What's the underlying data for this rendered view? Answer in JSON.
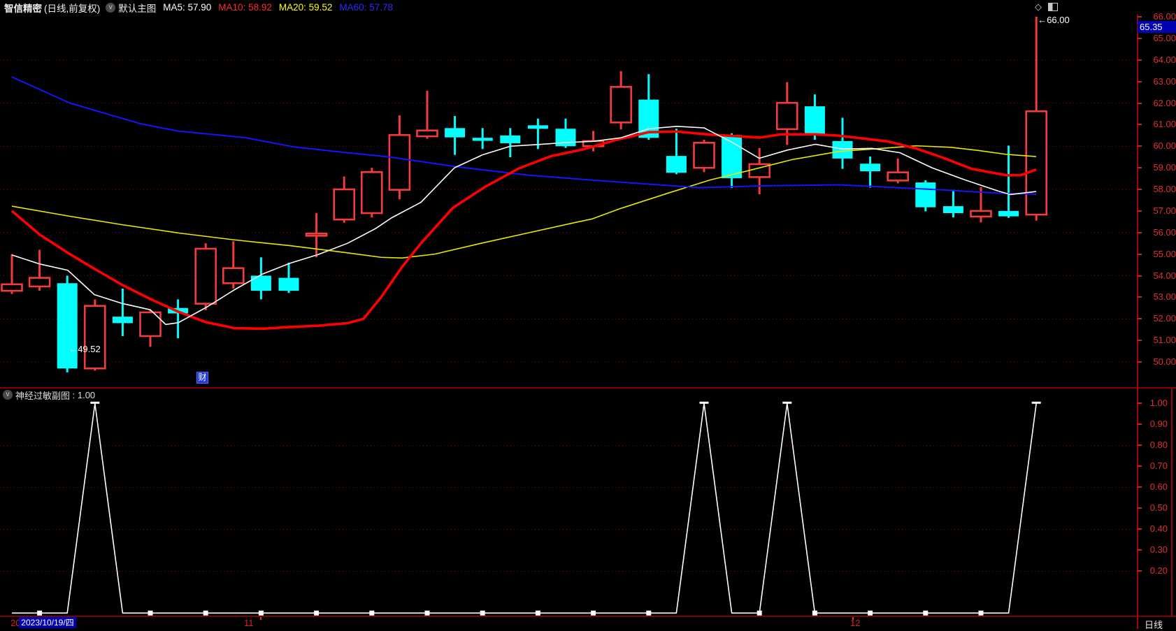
{
  "header": {
    "title": "智信精密",
    "subtitle": "(日线,前复权)",
    "chevron": "v",
    "layout_label": "默认主图",
    "ma_items": [
      {
        "label": "MA5:",
        "value": "57.90",
        "color": "#ffffff"
      },
      {
        "label": "MA10:",
        "value": "58.92",
        "color": "#ff2a2a"
      },
      {
        "label": "MA20:",
        "value": "59.52",
        "color": "#ffff00"
      },
      {
        "label": "MA60:",
        "value": "57.78",
        "color": "#2a2aff"
      }
    ]
  },
  "window_icons": {
    "diamond": "◇"
  },
  "main_chart": {
    "y_labels": [
      "66.00",
      "65.00",
      "64.00",
      "63.00",
      "62.00",
      "61.00",
      "60.00",
      "59.00",
      "58.00",
      "57.00",
      "56.00",
      "55.00",
      "54.00",
      "53.00",
      "52.00",
      "51.00",
      "50.00"
    ],
    "grid_values": [
      64,
      62,
      60,
      58,
      56,
      54,
      52,
      50
    ],
    "price_marker": {
      "value": "65.35"
    },
    "annotations": [
      {
        "text": "←66.00",
        "candle": 37,
        "field": "high"
      },
      {
        "text": "←49.52",
        "candle": 2,
        "field": "low"
      }
    ],
    "finance_badge": "财"
  },
  "sub_chart": {
    "name": "神经过敏副图",
    "separator": " : ",
    "value": "1.00",
    "chevron": "v",
    "y_labels": [
      "1.00",
      "0.90",
      "0.80",
      "0.70",
      "0.60",
      "0.50",
      "0.40",
      "0.30",
      "0.20"
    ],
    "grid_values": [
      0.8,
      0.6,
      0.4,
      0.2
    ]
  },
  "time_axis": {
    "left_partial": "20",
    "date_highlight": "2023/10/19/四",
    "months": [
      {
        "label": "11",
        "x": 349,
        "tick_x": 373
      },
      {
        "label": "12",
        "x": 1216,
        "tick_x": 1220
      }
    ],
    "period_label": "日线"
  },
  "colors": {
    "up": "#f43b3b",
    "down": "#00ffff",
    "ma5": "#ffffff",
    "ma10": "#ff0000",
    "ma20": "#e8e800",
    "ma60": "#1414ff",
    "axis_text": "#e03030",
    "grid": "#8b0000",
    "frame": "#9c0606",
    "marker_bg": "#0000b4",
    "indicator_line": "#ffffff"
  },
  "chart_data": [
    {
      "type": "candlestick",
      "title": "智信精密 日线 前复权",
      "ylim_visible": [
        50,
        66
      ],
      "x_start_label": "2023/10/19/四",
      "month_boundaries": [
        "11",
        "12"
      ],
      "candles": [
        {
          "d": "10/19",
          "o": 53.3,
          "h": 55.0,
          "l": 53.15,
          "c": 53.6
        },
        {
          "d": "10/20",
          "o": 53.5,
          "h": 55.2,
          "l": 53.3,
          "c": 53.9
        },
        {
          "d": "10/23",
          "o": 53.65,
          "h": 54.0,
          "l": 49.52,
          "c": 49.7
        },
        {
          "d": "10/24",
          "o": 49.7,
          "h": 52.9,
          "l": 49.6,
          "c": 52.6
        },
        {
          "d": "10/25",
          "o": 52.1,
          "h": 53.4,
          "l": 51.2,
          "c": 51.8
        },
        {
          "d": "10/26",
          "o": 51.2,
          "h": 52.4,
          "l": 50.7,
          "c": 52.3
        },
        {
          "d": "10/27",
          "o": 52.5,
          "h": 52.9,
          "l": 51.1,
          "c": 52.25
        },
        {
          "d": "10/30",
          "o": 52.7,
          "h": 55.5,
          "l": 52.4,
          "c": 55.25
        },
        {
          "d": "10/31",
          "o": 53.65,
          "h": 55.6,
          "l": 53.4,
          "c": 54.35
        },
        {
          "d": "11/01",
          "o": 54.0,
          "h": 54.85,
          "l": 52.9,
          "c": 53.3
        },
        {
          "d": "11/02",
          "o": 53.9,
          "h": 54.6,
          "l": 53.2,
          "c": 53.3
        },
        {
          "d": "11/03",
          "o": 55.85,
          "h": 56.9,
          "l": 54.85,
          "c": 55.95
        },
        {
          "d": "11/06",
          "o": 56.6,
          "h": 58.6,
          "l": 56.45,
          "c": 58.0
        },
        {
          "d": "11/07",
          "o": 56.9,
          "h": 59.0,
          "l": 56.7,
          "c": 58.8
        },
        {
          "d": "11/08",
          "o": 57.98,
          "h": 61.43,
          "l": 57.54,
          "c": 60.52
        },
        {
          "d": "11/09",
          "o": 60.46,
          "h": 62.57,
          "l": 60.35,
          "c": 60.73
        },
        {
          "d": "11/10",
          "o": 60.84,
          "h": 61.4,
          "l": 59.6,
          "c": 60.41
        },
        {
          "d": "11/13",
          "o": 60.39,
          "h": 60.84,
          "l": 59.87,
          "c": 60.25
        },
        {
          "d": "11/14",
          "o": 60.5,
          "h": 60.84,
          "l": 59.49,
          "c": 60.14
        },
        {
          "d": "11/15",
          "o": 60.97,
          "h": 61.28,
          "l": 59.87,
          "c": 60.81
        },
        {
          "d": "11/16",
          "o": 60.81,
          "h": 61.28,
          "l": 59.92,
          "c": 60.0
        },
        {
          "d": "11/17",
          "o": 60.0,
          "h": 60.71,
          "l": 59.76,
          "c": 60.24
        },
        {
          "d": "11/20",
          "o": 61.1,
          "h": 63.48,
          "l": 60.78,
          "c": 62.75
        },
        {
          "d": "11/21",
          "o": 62.16,
          "h": 63.34,
          "l": 60.3,
          "c": 60.39
        },
        {
          "d": "11/22",
          "o": 59.55,
          "h": 60.81,
          "l": 58.7,
          "c": 58.77
        },
        {
          "d": "11/23",
          "o": 59.0,
          "h": 60.3,
          "l": 58.8,
          "c": 60.16
        },
        {
          "d": "11/24",
          "o": 60.52,
          "h": 60.6,
          "l": 58.06,
          "c": 58.52
        },
        {
          "d": "11/27",
          "o": 58.57,
          "h": 59.92,
          "l": 57.77,
          "c": 59.17
        },
        {
          "d": "11/28",
          "o": 60.79,
          "h": 62.97,
          "l": 60.06,
          "c": 62.01
        },
        {
          "d": "11/29",
          "o": 61.85,
          "h": 62.4,
          "l": 60.3,
          "c": 60.5
        },
        {
          "d": "11/30",
          "o": 60.24,
          "h": 61.32,
          "l": 58.95,
          "c": 59.43
        },
        {
          "d": "12/01",
          "o": 59.19,
          "h": 59.52,
          "l": 58.08,
          "c": 58.84
        },
        {
          "d": "12/04",
          "o": 58.41,
          "h": 59.43,
          "l": 58.28,
          "c": 58.79
        },
        {
          "d": "12/05",
          "o": 58.32,
          "h": 58.42,
          "l": 56.98,
          "c": 57.17
        },
        {
          "d": "12/06",
          "o": 57.22,
          "h": 57.98,
          "l": 56.7,
          "c": 56.9
        },
        {
          "d": "12/07",
          "o": 56.74,
          "h": 58.1,
          "l": 56.47,
          "c": 57.0
        },
        {
          "d": "12/08",
          "o": 57.0,
          "h": 60.03,
          "l": 56.68,
          "c": 56.75
        },
        {
          "d": "12/11",
          "o": 56.83,
          "h": 66.0,
          "l": 56.55,
          "c": 61.62
        }
      ],
      "series": [
        {
          "name": "MA5",
          "color": "#ffffff",
          "width": 1.6,
          "pts": [
            [
              17,
              54.96
            ],
            [
              57,
              54.54
            ],
            [
              97,
              54.25
            ],
            [
              135,
              53.12
            ],
            [
              175,
              52.71
            ],
            [
              215,
              52.42
            ],
            [
              237,
              51.74
            ],
            [
              255,
              51.82
            ],
            [
              295,
              52.53
            ],
            [
              335,
              53.34
            ],
            [
              375,
              54.07
            ],
            [
              415,
              54.58
            ],
            [
              455,
              54.98
            ],
            [
              497,
              55.5
            ],
            [
              537,
              56.18
            ],
            [
              560,
              56.68
            ],
            [
              602,
              57.4
            ],
            [
              650,
              59.0
            ],
            [
              690,
              59.6
            ],
            [
              730,
              60.0
            ],
            [
              770,
              60.08
            ],
            [
              809,
              60.17
            ],
            [
              849,
              60.23
            ],
            [
              888,
              60.39
            ],
            [
              928,
              60.81
            ],
            [
              968,
              60.92
            ],
            [
              1007,
              60.85
            ],
            [
              1046,
              60.2
            ],
            [
              1086,
              59.44
            ],
            [
              1126,
              59.82
            ],
            [
              1166,
              60.09
            ],
            [
              1205,
              59.87
            ],
            [
              1247,
              59.9
            ],
            [
              1287,
              59.7
            ],
            [
              1333,
              59.0
            ],
            [
              1380,
              58.44
            ],
            [
              1427,
              57.93
            ],
            [
              1445,
              57.76
            ],
            [
              1482,
              57.9
            ]
          ]
        },
        {
          "name": "MA10",
          "color": "#ff0000",
          "width": 3.6,
          "pts": [
            [
              17,
              57.0
            ],
            [
              57,
              55.9
            ],
            [
              97,
              55.06
            ],
            [
              135,
              54.32
            ],
            [
              175,
              53.57
            ],
            [
              215,
              52.92
            ],
            [
              255,
              52.33
            ],
            [
              295,
              51.84
            ],
            [
              335,
              51.57
            ],
            [
              375,
              51.54
            ],
            [
              415,
              51.62
            ],
            [
              455,
              51.68
            ],
            [
              497,
              51.8
            ],
            [
              520,
              52.0
            ],
            [
              545,
              53.0
            ],
            [
              575,
              54.4
            ],
            [
              602,
              55.5
            ],
            [
              648,
              57.15
            ],
            [
              695,
              58.14
            ],
            [
              742,
              58.97
            ],
            [
              788,
              59.54
            ],
            [
              835,
              59.86
            ],
            [
              882,
              60.3
            ],
            [
              928,
              60.65
            ],
            [
              968,
              60.68
            ],
            [
              1015,
              60.54
            ],
            [
              1067,
              60.44
            ],
            [
              1087,
              60.4
            ],
            [
              1117,
              60.55
            ],
            [
              1167,
              60.55
            ],
            [
              1200,
              60.49
            ],
            [
              1270,
              60.22
            ],
            [
              1310,
              59.9
            ],
            [
              1350,
              59.45
            ],
            [
              1390,
              58.95
            ],
            [
              1440,
              58.65
            ],
            [
              1460,
              58.66
            ],
            [
              1482,
              58.92
            ]
          ]
        },
        {
          "name": "MA20",
          "color": "#e8e800",
          "width": 1.6,
          "pts": [
            [
              17,
              57.22
            ],
            [
              97,
              56.77
            ],
            [
              175,
              56.36
            ],
            [
              255,
              55.98
            ],
            [
              335,
              55.66
            ],
            [
              415,
              55.39
            ],
            [
              497,
              55.06
            ],
            [
              545,
              54.85
            ],
            [
              575,
              54.82
            ],
            [
              622,
              55.0
            ],
            [
              688,
              55.5
            ],
            [
              755,
              55.98
            ],
            [
              822,
              56.46
            ],
            [
              847,
              56.63
            ],
            [
              888,
              57.12
            ],
            [
              955,
              57.82
            ],
            [
              1015,
              58.43
            ],
            [
              1067,
              58.84
            ],
            [
              1133,
              59.38
            ],
            [
              1200,
              59.76
            ],
            [
              1270,
              59.92
            ],
            [
              1310,
              60.02
            ],
            [
              1360,
              59.95
            ],
            [
              1400,
              59.8
            ],
            [
              1440,
              59.62
            ],
            [
              1482,
              59.52
            ]
          ]
        },
        {
          "name": "MA60",
          "color": "#1414ff",
          "width": 2,
          "pts": [
            [
              17,
              63.21
            ],
            [
              100,
              62.0
            ],
            [
              200,
              61.05
            ],
            [
              255,
              60.7
            ],
            [
              350,
              60.4
            ],
            [
              420,
              59.97
            ],
            [
              490,
              59.72
            ],
            [
              555,
              59.51
            ],
            [
              655,
              59.04
            ],
            [
              755,
              58.66
            ],
            [
              855,
              58.41
            ],
            [
              1000,
              58.08
            ],
            [
              1100,
              58.17
            ],
            [
              1200,
              58.21
            ],
            [
              1270,
              58.1
            ],
            [
              1350,
              57.97
            ],
            [
              1430,
              57.82
            ],
            [
              1482,
              57.78
            ]
          ]
        }
      ]
    },
    {
      "type": "line",
      "name": "神经过敏副图",
      "current_value": 1.0,
      "ylim": [
        0,
        1.0
      ],
      "y_tick_labels": [
        "1.00",
        "0.90",
        "0.80",
        "0.70",
        "0.60",
        "0.50",
        "0.40",
        "0.30",
        "0.20"
      ],
      "values": [
        0,
        0,
        0,
        1,
        0,
        0,
        0,
        0,
        0,
        0,
        0,
        0,
        0,
        0,
        0,
        0,
        0,
        0,
        0,
        0,
        0,
        0,
        0,
        0,
        0,
        1,
        0,
        0,
        1,
        0,
        0,
        0,
        0,
        0,
        0,
        0,
        0,
        1
      ],
      "spike_indices": [
        3,
        25,
        28,
        37
      ],
      "baseline_marker_indices": [
        1,
        5,
        7,
        9,
        11,
        13,
        15,
        17,
        19,
        21,
        23,
        27,
        29,
        31,
        33,
        35
      ]
    }
  ]
}
